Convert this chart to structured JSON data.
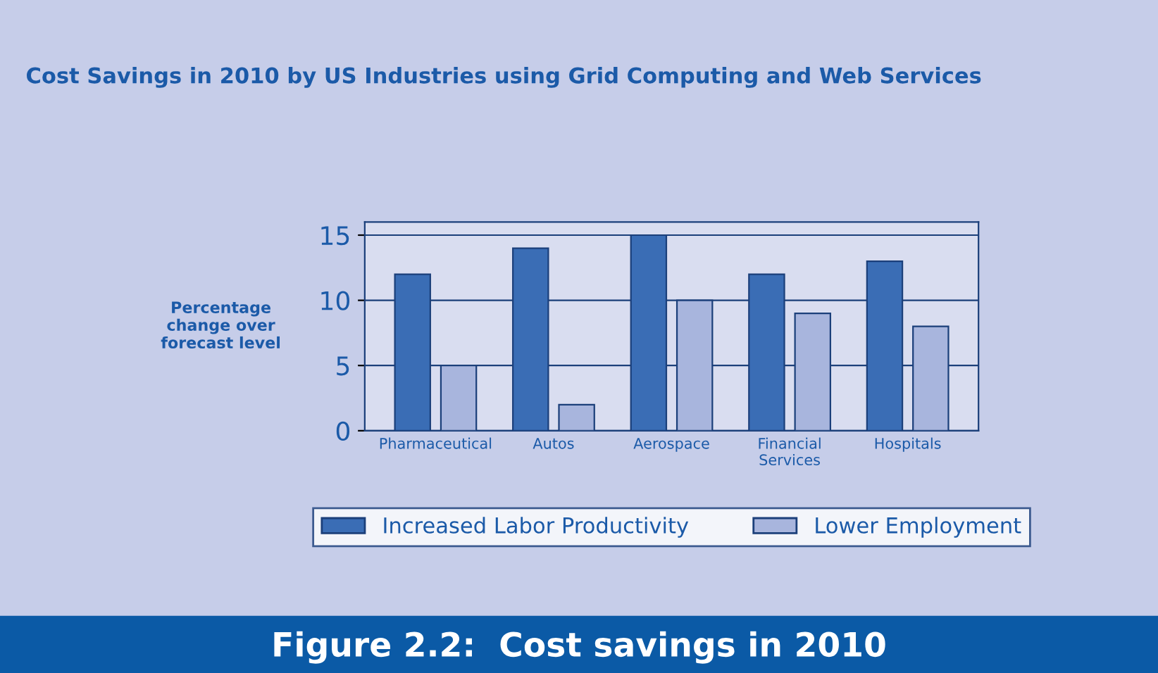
{
  "chart_data": {
    "type": "bar",
    "title": "Cost Savings in 2010 by US Industries using Grid Computing and Web Services",
    "ylabel": "Percentage\nchange over\nforecast level",
    "categories": [
      "Pharmaceutical",
      "Autos",
      "Aerospace",
      "Financial\nServices",
      "Hospitals"
    ],
    "series": [
      {
        "name": "Increased Labor Productivity",
        "color": "#3a6db5",
        "values": [
          12,
          14,
          15,
          12,
          13
        ]
      },
      {
        "name": "Lower Employment",
        "color": "#a8b5dd",
        "values": [
          5,
          2,
          10,
          9,
          8
        ]
      }
    ],
    "ylim": [
      0,
      16
    ],
    "yticks": [
      0,
      5,
      10,
      15
    ],
    "grid": "y",
    "legend": "bottom",
    "annotations": [
      "Figure 2.2:  Cost savings in 2010"
    ]
  }
}
